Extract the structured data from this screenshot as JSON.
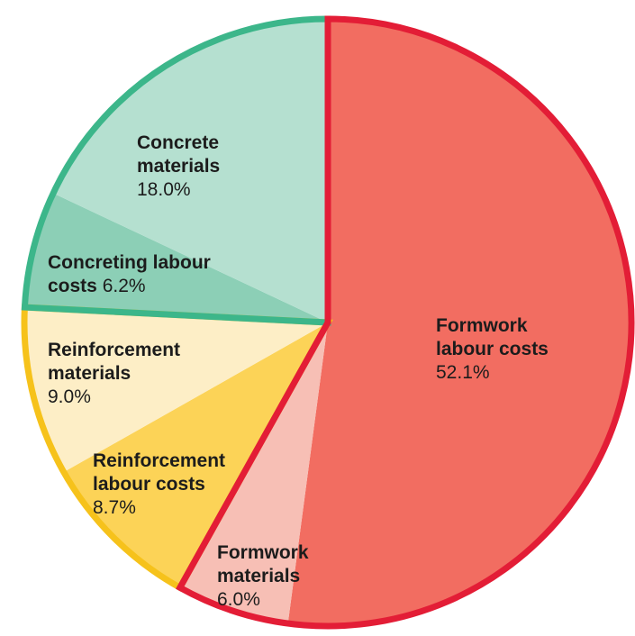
{
  "chart_data": {
    "type": "pie",
    "title": "",
    "slices": [
      {
        "label_lines": [
          "Formwork",
          "labour costs"
        ],
        "value": 52.1,
        "value_text": "52.1%",
        "fill": "#f26d61",
        "group": "formwork"
      },
      {
        "label_lines": [
          "Formwork",
          "materials"
        ],
        "value": 6.0,
        "value_text": "6.0%",
        "fill": "#f7bfb5",
        "group": "formwork"
      },
      {
        "label_lines": [
          "Reinforcement",
          "labour costs"
        ],
        "value": 8.7,
        "value_text": "8.7%",
        "fill": "#fcd357",
        "group": "reinforcement"
      },
      {
        "label_lines": [
          "Reinforcement",
          "materials"
        ],
        "value": 9.0,
        "value_text": "9.0%",
        "fill": "#fdeec6",
        "group": "reinforcement"
      },
      {
        "label_lines": [
          "Concreting labour",
          "costs"
        ],
        "value": 6.2,
        "value_text": "6.2%",
        "fill": "#8ccfb6",
        "group": "concrete",
        "inline_value": true
      },
      {
        "label_lines": [
          "Concrete",
          "materials"
        ],
        "value": 18.0,
        "value_text": "18.0%",
        "fill": "#b5e0d0",
        "group": "concrete"
      }
    ],
    "group_outlines": {
      "formwork": "#e31d36",
      "reinforcement": "#f6c21b",
      "concrete": "#3cb68a"
    },
    "start_angle_deg": 0,
    "direction": "clockwise"
  }
}
